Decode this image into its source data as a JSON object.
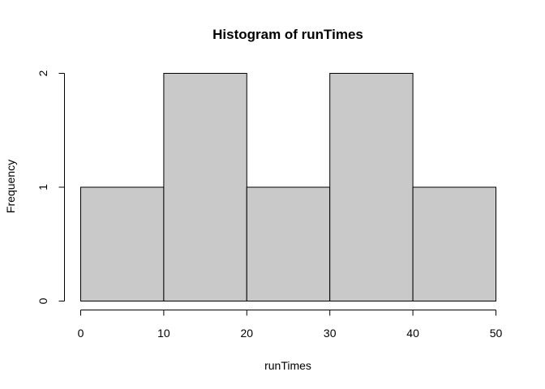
{
  "chart_data": {
    "type": "bar",
    "subtype": "histogram",
    "title": "Histogram of runTimes",
    "xlabel": "runTimes",
    "ylabel": "Frequency",
    "bins": [
      {
        "start": 0,
        "end": 10,
        "count": 1
      },
      {
        "start": 10,
        "end": 20,
        "count": 2
      },
      {
        "start": 20,
        "end": 30,
        "count": 1
      },
      {
        "start": 30,
        "end": 40,
        "count": 2
      },
      {
        "start": 40,
        "end": 50,
        "count": 1
      }
    ],
    "xlim": [
      0,
      50
    ],
    "ylim": [
      0,
      2
    ],
    "x_ticks": [
      0,
      10,
      20,
      30,
      40,
      50
    ],
    "y_ticks": [
      0,
      1,
      2
    ],
    "bar_color": "#c9c9c9",
    "grid": false,
    "legend": "none"
  }
}
